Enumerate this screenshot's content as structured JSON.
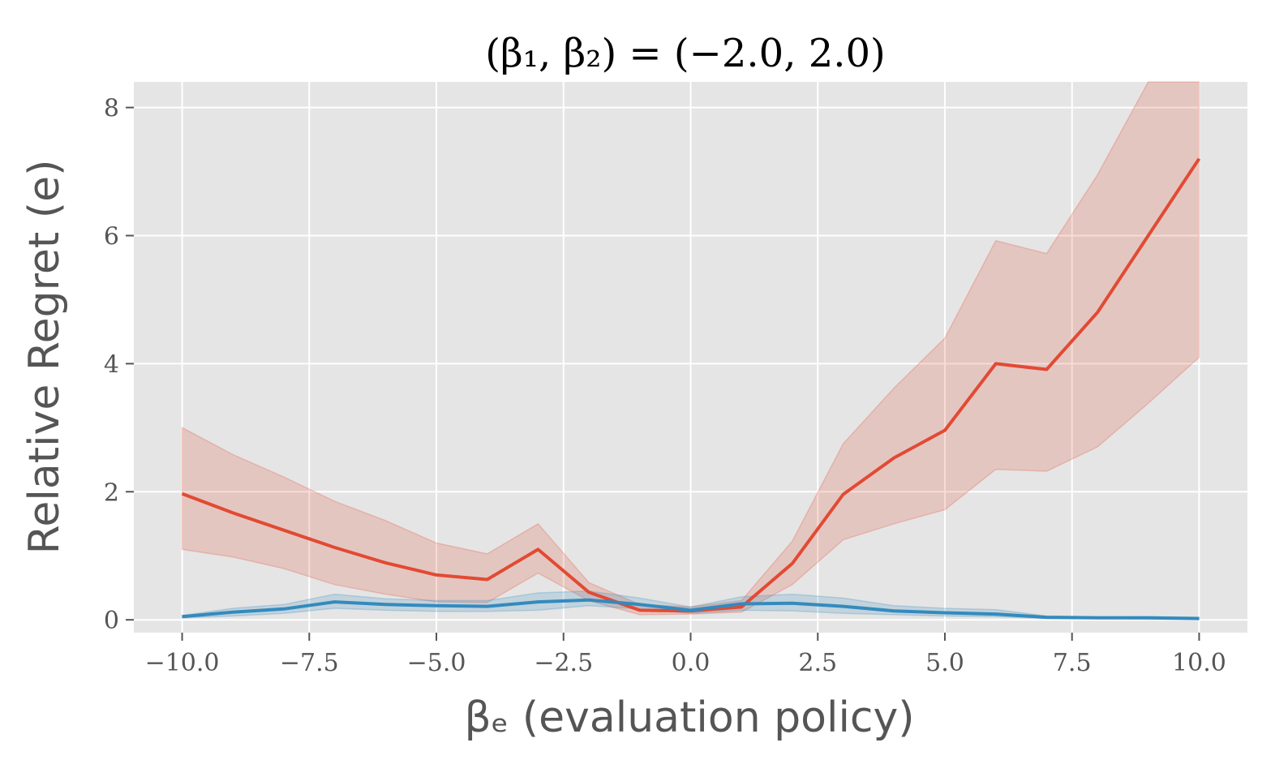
{
  "chart_data": {
    "type": "line",
    "title": "(β₁, β₂) = (−2.0, 2.0)",
    "xlabel": "βₑ (evaluation policy)",
    "ylabel": "Relative Regret (e)",
    "x": [
      -10,
      -9,
      -8,
      -7,
      -6,
      -5,
      -4,
      -3,
      -2,
      -1,
      0,
      1,
      2,
      3,
      4,
      5,
      6,
      7,
      8,
      9,
      10
    ],
    "xlim": [
      -10.95,
      10.95
    ],
    "ylim": [
      -0.2,
      8.4
    ],
    "xticks": [
      -10.0,
      -7.5,
      -5.0,
      -2.5,
      0.0,
      2.5,
      5.0,
      7.5,
      10.0
    ],
    "xtick_labels": [
      "−10.0",
      "−7.5",
      "−5.0",
      "−2.5",
      "0.0",
      "2.5",
      "5.0",
      "7.5",
      "10.0"
    ],
    "yticks": [
      0,
      2,
      4,
      6,
      8
    ],
    "ytick_labels": [
      "0",
      "2",
      "4",
      "6",
      "8"
    ],
    "grid": true,
    "background": "#e5e5e5",
    "series": [
      {
        "color": "#e24a33",
        "values": [
          1.97,
          1.67,
          1.4,
          1.13,
          0.89,
          0.7,
          0.63,
          1.1,
          0.43,
          0.15,
          0.14,
          0.2,
          0.88,
          1.96,
          2.53,
          2.96,
          4.0,
          3.91,
          4.8,
          6.0,
          7.2
        ],
        "lower": [
          1.1,
          0.98,
          0.8,
          0.55,
          0.4,
          0.28,
          0.27,
          0.73,
          0.3,
          0.08,
          0.09,
          0.12,
          0.55,
          1.25,
          1.5,
          1.72,
          2.35,
          2.32,
          2.7,
          3.38,
          4.1
        ],
        "upper": [
          3.0,
          2.58,
          2.23,
          1.85,
          1.55,
          1.2,
          1.03,
          1.5,
          0.58,
          0.24,
          0.2,
          0.3,
          1.23,
          2.75,
          3.62,
          4.4,
          5.92,
          5.72,
          6.95,
          8.73,
          9.6
        ]
      },
      {
        "color": "#348abd",
        "values": [
          0.05,
          0.12,
          0.17,
          0.28,
          0.24,
          0.22,
          0.21,
          0.28,
          0.31,
          0.24,
          0.15,
          0.25,
          0.26,
          0.21,
          0.14,
          0.11,
          0.09,
          0.04,
          0.03,
          0.03,
          0.02
        ],
        "lower": [
          0.03,
          0.06,
          0.1,
          0.18,
          0.15,
          0.13,
          0.13,
          0.15,
          0.22,
          0.17,
          0.1,
          0.15,
          0.14,
          0.1,
          0.08,
          0.06,
          0.05,
          0.02,
          0.02,
          0.01,
          0.01
        ],
        "upper": [
          0.07,
          0.18,
          0.24,
          0.4,
          0.33,
          0.3,
          0.3,
          0.42,
          0.45,
          0.34,
          0.2,
          0.36,
          0.4,
          0.34,
          0.22,
          0.18,
          0.16,
          0.06,
          0.05,
          0.05,
          0.04
        ]
      }
    ]
  }
}
